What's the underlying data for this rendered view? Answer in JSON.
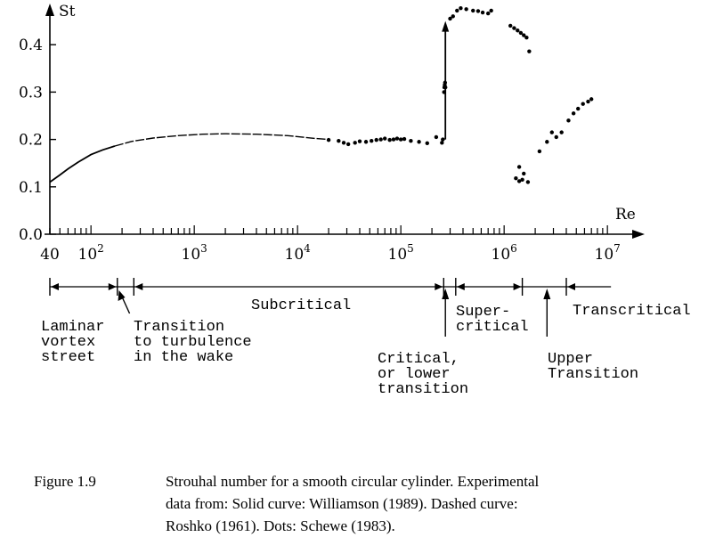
{
  "chart_data": {
    "type": "scatter",
    "x_scale": "log",
    "xlabel": "Re",
    "ylabel": "St",
    "xlim": [
      40,
      10000000
    ],
    "ylim": [
      0,
      0.48
    ],
    "x_tick_labels": [
      {
        "value": 40,
        "label": "40"
      },
      {
        "value": 100,
        "base": "10",
        "exp": "2"
      },
      {
        "value": 1000,
        "base": "10",
        "exp": "3"
      },
      {
        "value": 10000,
        "base": "10",
        "exp": "4"
      },
      {
        "value": 100000,
        "base": "10",
        "exp": "5"
      },
      {
        "value": 1000000,
        "base": "10",
        "exp": "6"
      },
      {
        "value": 10000000,
        "base": "10",
        "exp": "7"
      }
    ],
    "y_ticks": [
      {
        "value": 0.0,
        "label": "0.0"
      },
      {
        "value": 0.1,
        "label": "0.1"
      },
      {
        "value": 0.2,
        "label": "0.2"
      },
      {
        "value": 0.3,
        "label": "0.3"
      },
      {
        "value": 0.4,
        "label": "0.4"
      }
    ],
    "series": [
      {
        "style": "solid",
        "points": [
          [
            40,
            0.11
          ],
          [
            50,
            0.125
          ],
          [
            60,
            0.138
          ],
          [
            75,
            0.152
          ],
          [
            100,
            0.168
          ],
          [
            130,
            0.178
          ],
          [
            170,
            0.186
          ]
        ]
      },
      {
        "style": "dashed",
        "points": [
          [
            170,
            0.186
          ],
          [
            250,
            0.196
          ],
          [
            400,
            0.203
          ],
          [
            700,
            0.208
          ],
          [
            1200,
            0.211
          ],
          [
            2000,
            0.212
          ],
          [
            4000,
            0.211
          ],
          [
            8000,
            0.208
          ],
          [
            15000,
            0.202
          ],
          [
            20000,
            0.2
          ]
        ]
      },
      {
        "style": "dots",
        "points": [
          [
            20000,
            0.199
          ],
          [
            25000,
            0.197
          ],
          [
            28000,
            0.193
          ],
          [
            31000,
            0.19
          ],
          [
            36000,
            0.193
          ],
          [
            40000,
            0.196
          ],
          [
            46000,
            0.195
          ],
          [
            52000,
            0.197
          ],
          [
            58000,
            0.199
          ],
          [
            64000,
            0.2
          ],
          [
            70000,
            0.202
          ],
          [
            78000,
            0.199
          ],
          [
            85000,
            0.2
          ],
          [
            92000,
            0.202
          ],
          [
            100000,
            0.2
          ],
          [
            108000,
            0.201
          ],
          [
            125000,
            0.197
          ],
          [
            150000,
            0.195
          ],
          [
            180000,
            0.192
          ],
          [
            220000,
            0.205
          ],
          [
            250000,
            0.193
          ],
          [
            255000,
            0.2
          ],
          [
            262000,
            0.3
          ],
          [
            264000,
            0.31
          ],
          [
            266000,
            0.315
          ],
          [
            268000,
            0.32
          ],
          [
            270000,
            0.31
          ],
          [
            300000,
            0.455
          ],
          [
            320000,
            0.46
          ],
          [
            350000,
            0.472
          ],
          [
            380000,
            0.477
          ],
          [
            430000,
            0.475
          ],
          [
            500000,
            0.472
          ],
          [
            560000,
            0.471
          ],
          [
            620000,
            0.468
          ],
          [
            700000,
            0.466
          ],
          [
            750000,
            0.472
          ],
          [
            1150000,
            0.44
          ],
          [
            1250000,
            0.435
          ],
          [
            1350000,
            0.43
          ],
          [
            1450000,
            0.425
          ],
          [
            1550000,
            0.42
          ],
          [
            1650000,
            0.415
          ],
          [
            1750000,
            0.386
          ],
          [
            1300000,
            0.118
          ],
          [
            1400000,
            0.112
          ],
          [
            1500000,
            0.115
          ],
          [
            1700000,
            0.11
          ],
          [
            1400000,
            0.142
          ],
          [
            1550000,
            0.128
          ],
          [
            2200000,
            0.175
          ],
          [
            2600000,
            0.195
          ],
          [
            2900000,
            0.215
          ],
          [
            3200000,
            0.205
          ],
          [
            3600000,
            0.215
          ],
          [
            4200000,
            0.24
          ],
          [
            4700000,
            0.255
          ],
          [
            5200000,
            0.265
          ],
          [
            5800000,
            0.275
          ],
          [
            6500000,
            0.28
          ],
          [
            7000000,
            0.285
          ]
        ]
      }
    ],
    "critical_jump_arrow": {
      "x": 270000,
      "from": 0.2,
      "to": 0.45
    },
    "regime_bar": {
      "dividers": [
        180,
        260,
        260000,
        340000,
        1500000,
        4000000
      ],
      "line_end": 10000000,
      "arrows": [
        {
          "from": 40,
          "to": 180
        },
        {
          "from": 260,
          "to": 260000
        },
        {
          "from": 340000,
          "to": 1500000
        },
        {
          "from": 4000000,
          "to": 10000000
        }
      ],
      "pointers": [
        {
          "x": 210,
          "tilt": "left"
        },
        {
          "x": 270000,
          "tilt": "none"
        },
        {
          "x": 2600000,
          "tilt": "none"
        }
      ],
      "labels": [
        {
          "lines": [
            "Laminar",
            "vortex",
            "street"
          ]
        },
        {
          "lines": [
            "Transition",
            "to turbulence",
            "in the wake"
          ]
        },
        {
          "lines": [
            "Subcritical"
          ]
        },
        {
          "lines": [
            "Critical,",
            "or lower",
            "transition"
          ]
        },
        {
          "lines": [
            "Super-",
            "critical"
          ]
        },
        {
          "lines": [
            "Upper",
            "Transition"
          ]
        },
        {
          "lines": [
            "Transcritical"
          ]
        }
      ]
    }
  },
  "caption": {
    "label": "Figure 1.9",
    "lines": [
      "Strouhal number for a smooth circular cylinder. Experimental",
      "data from:  Solid curve:  Williamson (1989).  Dashed curve:",
      "Roshko (1961). Dots: Schewe (1983)."
    ]
  }
}
